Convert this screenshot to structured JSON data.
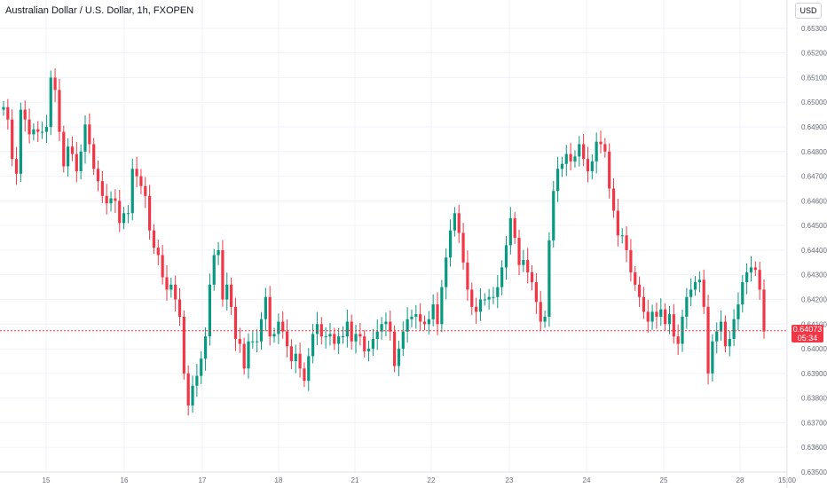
{
  "header": {
    "title": "Australian Dollar / U.S. Dollar, 1h, FXOPEN",
    "currency_button": "USD"
  },
  "last_price": {
    "value": "0.64073",
    "countdown": "05:34"
  },
  "colors": {
    "up": "#089981",
    "down": "#f23645",
    "grid": "#f0f3fa",
    "text": "#131722",
    "axis_text": "#6a6d78"
  },
  "chart_data": {
    "type": "candlestick",
    "title": "Australian Dollar / U.S. Dollar, 1h, FXOPEN",
    "ylim": [
      0.635,
      0.6535
    ],
    "y_ticks": [
      "0.63500",
      "0.63600",
      "0.63700",
      "0.63800",
      "0.63900",
      "0.64000",
      "0.64100",
      "0.64200",
      "0.64300",
      "0.64400",
      "0.64500",
      "0.64600",
      "0.64700",
      "0.64800",
      "0.64900",
      "0.65000",
      "0.65100",
      "0.65200",
      "0.65300"
    ],
    "x_ticks": [
      "15",
      "16",
      "17",
      "18",
      "21",
      "22",
      "23",
      "24",
      "25",
      "28",
      "15:00"
    ],
    "last_close": 0.64073,
    "closes": [
      0.6498,
      0.6493,
      0.6477,
      0.6471,
      0.6497,
      0.6493,
      0.6487,
      0.6489,
      0.6488,
      0.6488,
      0.649,
      0.651,
      0.6505,
      0.6488,
      0.6474,
      0.6482,
      0.6479,
      0.6472,
      0.648,
      0.6491,
      0.6483,
      0.6473,
      0.6468,
      0.6462,
      0.6459,
      0.6461,
      0.646,
      0.6451,
      0.6455,
      0.6455,
      0.6473,
      0.647,
      0.6466,
      0.6462,
      0.6448,
      0.6441,
      0.6438,
      0.6429,
      0.6424,
      0.6426,
      0.642,
      0.6413,
      0.639,
      0.6377,
      0.6385,
      0.6389,
      0.6396,
      0.6405,
      0.6426,
      0.6438,
      0.644,
      0.642,
      0.6426,
      0.6417,
      0.6404,
      0.6402,
      0.6392,
      0.6403,
      0.6403,
      0.6403,
      0.6412,
      0.6421,
      0.6405,
      0.6406,
      0.6411,
      0.6407,
      0.6401,
      0.6395,
      0.6398,
      0.6392,
      0.6387,
      0.6397,
      0.6406,
      0.641,
      0.6405,
      0.6405,
      0.6406,
      0.6402,
      0.6405,
      0.6405,
      0.6411,
      0.6403,
      0.6406,
      0.6405,
      0.6399,
      0.64,
      0.6404,
      0.6407,
      0.641,
      0.6411,
      0.6407,
      0.6393,
      0.64,
      0.6407,
      0.6412,
      0.6413,
      0.6414,
      0.6411,
      0.641,
      0.6412,
      0.6418,
      0.641,
      0.6425,
      0.6437,
      0.6448,
      0.6455,
      0.6447,
      0.6435,
      0.6424,
      0.6417,
      0.6415,
      0.642,
      0.642,
      0.6421,
      0.6421,
      0.6425,
      0.6433,
      0.6442,
      0.6453,
      0.6445,
      0.6434,
      0.6436,
      0.6431,
      0.6427,
      0.6419,
      0.6411,
      0.6413,
      0.6444,
      0.6464,
      0.6473,
      0.6475,
      0.6479,
      0.6476,
      0.6478,
      0.6483,
      0.6477,
      0.6472,
      0.6476,
      0.6484,
      0.6483,
      0.648,
      0.6465,
      0.6456,
      0.6446,
      0.6446,
      0.644,
      0.6431,
      0.6426,
      0.6421,
      0.6415,
      0.6411,
      0.6415,
      0.6413,
      0.6416,
      0.641,
      0.6414,
      0.6405,
      0.6402,
      0.6413,
      0.6421,
      0.6424,
      0.6427,
      0.6428,
      0.6417,
      0.639,
      0.6403,
      0.6407,
      0.6411,
      0.6401,
      0.6404,
      0.6412,
      0.6418,
      0.6427,
      0.6431,
      0.6433,
      0.6432,
      0.6424,
      0.6407
    ],
    "opens": [
      0.6497,
      0.6498,
      0.6493,
      0.6477,
      0.6471,
      0.6497,
      0.6493,
      0.6487,
      0.6489,
      0.6488,
      0.6488,
      0.649,
      0.651,
      0.6505,
      0.6488,
      0.6474,
      0.6482,
      0.6479,
      0.6472,
      0.648,
      0.6491,
      0.6483,
      0.6473,
      0.6468,
      0.6462,
      0.6459,
      0.6461,
      0.646,
      0.6451,
      0.6455,
      0.6455,
      0.6473,
      0.647,
      0.6466,
      0.6462,
      0.6448,
      0.6441,
      0.6438,
      0.6429,
      0.6424,
      0.6426,
      0.642,
      0.6413,
      0.639,
      0.6377,
      0.6385,
      0.6389,
      0.6396,
      0.6405,
      0.6426,
      0.6438,
      0.644,
      0.642,
      0.6426,
      0.6417,
      0.6404,
      0.6402,
      0.6392,
      0.6403,
      0.6403,
      0.6403,
      0.6412,
      0.6421,
      0.6405,
      0.6406,
      0.6411,
      0.6407,
      0.6401,
      0.6395,
      0.6398,
      0.6392,
      0.6387,
      0.6397,
      0.6406,
      0.641,
      0.6405,
      0.6405,
      0.6406,
      0.6402,
      0.6405,
      0.6405,
      0.6411,
      0.6403,
      0.6406,
      0.6405,
      0.6399,
      0.64,
      0.6404,
      0.6407,
      0.641,
      0.6411,
      0.6407,
      0.6393,
      0.64,
      0.6407,
      0.6412,
      0.6413,
      0.6414,
      0.6411,
      0.641,
      0.6412,
      0.6418,
      0.641,
      0.6425,
      0.6437,
      0.6448,
      0.6455,
      0.6447,
      0.6435,
      0.6424,
      0.6417,
      0.6415,
      0.642,
      0.642,
      0.6421,
      0.6421,
      0.6425,
      0.6433,
      0.6442,
      0.6453,
      0.6445,
      0.6434,
      0.6436,
      0.6431,
      0.6427,
      0.6419,
      0.6411,
      0.6413,
      0.6444,
      0.6464,
      0.6473,
      0.6475,
      0.6479,
      0.6476,
      0.6478,
      0.6483,
      0.6477,
      0.6472,
      0.6476,
      0.6484,
      0.6483,
      0.648,
      0.6465,
      0.6456,
      0.6446,
      0.6446,
      0.644,
      0.6431,
      0.6426,
      0.6421,
      0.6415,
      0.6411,
      0.6415,
      0.6413,
      0.6416,
      0.641,
      0.6414,
      0.6405,
      0.6402,
      0.6413,
      0.6421,
      0.6424,
      0.6427,
      0.6428,
      0.6417,
      0.639,
      0.6403,
      0.6407,
      0.6411,
      0.6401,
      0.6404,
      0.6412,
      0.6418,
      0.6427,
      0.6431,
      0.6433,
      0.6432,
      0.6424
    ]
  }
}
